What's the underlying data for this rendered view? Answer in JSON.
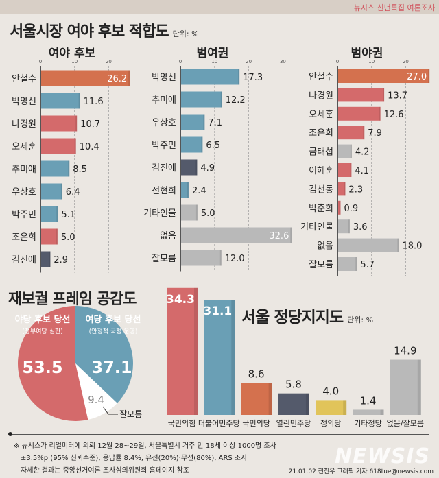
{
  "header": {
    "series_label": "뉴시스 신년특집 여론조사"
  },
  "colors": {
    "orange": "#d4714e",
    "blue": "#6a9fb5",
    "red": "#d46a6b",
    "navy": "#545a6b",
    "gray": "#b9b9b9",
    "yellow": "#e1c45a",
    "white": "#ffffff"
  },
  "chart_data": [
    {
      "type": "bar",
      "orientation": "horizontal",
      "title": "서울시장 여야 후보 적합도",
      "unit": "단위: %",
      "subtitle": "여야 후보",
      "xlim": [
        0,
        26
      ],
      "ticks": [
        "0",
        "10",
        "20"
      ],
      "categories": [
        "안철수",
        "박영선",
        "나경원",
        "오세훈",
        "추미애",
        "우상호",
        "박주민",
        "조은희",
        "김진애"
      ],
      "values": [
        26.2,
        11.6,
        10.7,
        10.4,
        8.5,
        6.4,
        5.1,
        5.0,
        2.9
      ],
      "bar_colors": [
        "orange",
        "blue",
        "red",
        "red",
        "blue",
        "blue",
        "blue",
        "red",
        "navy"
      ]
    },
    {
      "type": "bar",
      "orientation": "horizontal",
      "subtitle": "범여권",
      "xlim": [
        0,
        33
      ],
      "ticks": [
        "0",
        "10",
        "20",
        "30"
      ],
      "categories": [
        "박영선",
        "추미애",
        "우상호",
        "박주민",
        "김진애",
        "전현희",
        "기타인물",
        "없음",
        "잘모름"
      ],
      "values": [
        17.3,
        12.2,
        7.1,
        6.5,
        4.9,
        2.4,
        5.0,
        32.6,
        12.0
      ],
      "bar_colors": [
        "blue",
        "blue",
        "blue",
        "blue",
        "navy",
        "blue",
        "gray",
        "gray",
        "gray"
      ]
    },
    {
      "type": "bar",
      "orientation": "horizontal",
      "subtitle": "범야권",
      "xlim": [
        0,
        27
      ],
      "ticks": [
        "0",
        "10",
        "20"
      ],
      "categories": [
        "안철수",
        "나경원",
        "오세훈",
        "조은희",
        "금태섭",
        "이혜훈",
        "김선동",
        "박춘희",
        "기타인물",
        "없음",
        "잘모름"
      ],
      "values": [
        27.0,
        13.7,
        12.6,
        7.9,
        4.2,
        4.1,
        2.3,
        0.9,
        3.6,
        18.0,
        5.7
      ],
      "bar_colors": [
        "orange",
        "red",
        "red",
        "red",
        "gray",
        "red",
        "red",
        "red",
        "gray",
        "gray",
        "gray"
      ]
    },
    {
      "type": "pie",
      "title": "재보궐 프레임 공감도",
      "slices": [
        {
          "name": "여당 후보 당선",
          "sub": "(안정적 국정 운영)",
          "value": 37.1,
          "color": "blue"
        },
        {
          "name": "잘모름",
          "sub": "",
          "value": 9.4,
          "color": "white"
        },
        {
          "name": "야당 후보 당선",
          "sub": "(정부여당 심판)",
          "value": 53.5,
          "color": "red"
        }
      ]
    },
    {
      "type": "bar",
      "orientation": "vertical",
      "title": "서울 정당지지도",
      "unit": "단위: %",
      "categories": [
        "국민의힘",
        "더불어민주당",
        "국민의당",
        "열린민주당",
        "정의당",
        "기타정당",
        "없음/잘모름"
      ],
      "values": [
        34.3,
        31.1,
        8.6,
        5.8,
        4.0,
        1.4,
        14.9
      ],
      "bar_colors": [
        "red",
        "blue",
        "orange",
        "navy",
        "yellow",
        "gray",
        "gray"
      ]
    }
  ],
  "footer": {
    "note1": "※ 뉴시스가 리얼미터에 의뢰 12월 28~29일, 서울특별시 거주 만 18세 이상 1000명 조사",
    "note2": "±3.5%p (95% 신뢰수준), 응답률 8.4%, 유선(20%)·무선(80%), ARS 조사",
    "note3": "자세한 결과는 중앙선거여론 조사심의위원회 홈페이지 참조",
    "credit": "21.01.02 전진우 그래픽 기자 618tue@newsis.com",
    "logo": "NEWSIS"
  }
}
